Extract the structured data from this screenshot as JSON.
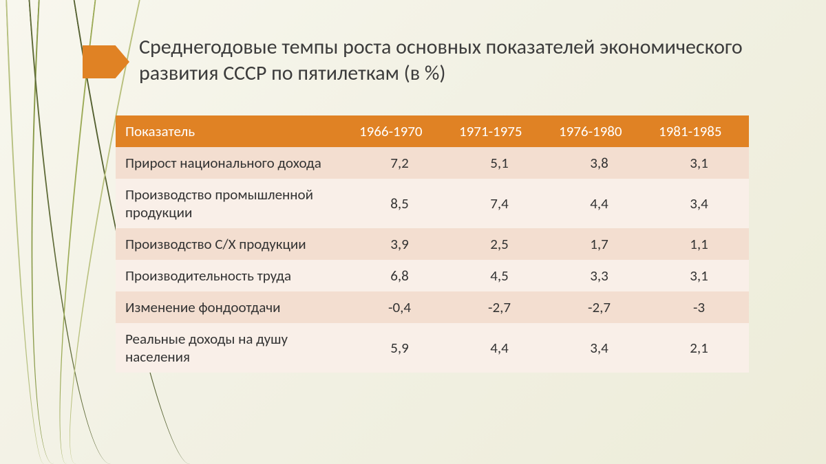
{
  "title": "Среднегодовые темпы роста основных показателей экономического развития СССР по пятилеткам (в %)",
  "title_color": "#3c3c3c",
  "accent_color": "#e08224",
  "table": {
    "type": "table",
    "header_bg": "#e08224",
    "header_text_color": "#ffffff",
    "row_colors": [
      "#f3ded0",
      "#f9efe8"
    ],
    "cell_text_color": "#333333",
    "columns": [
      "Показатель",
      "1966-1970",
      "1971-1975",
      "1976-1980",
      "1981-1985"
    ],
    "rows": [
      {
        "label": "Прирост национального дохода",
        "values": [
          "7,2",
          "5,1",
          "3,8",
          "3,1"
        ]
      },
      {
        "label": "Производство промышленной продукции",
        "values": [
          "8,5",
          "7,4",
          "4,4",
          "3,4"
        ]
      },
      {
        "label": "Производство С/Х продукции",
        "values": [
          "3,9",
          "2,5",
          "1,7",
          "1,1"
        ]
      },
      {
        "label": "Производительность труда",
        "values": [
          "6,8",
          "4,5",
          "3,3",
          "3,1"
        ]
      },
      {
        "label": "Изменение фондоотдачи",
        "values": [
          "-0,4",
          "-2,7",
          "-2,7",
          "-3"
        ]
      },
      {
        "label": "Реальные доходы на душу населения",
        "values": [
          "5,9",
          "4,4",
          "3,4",
          "2,1"
        ]
      }
    ]
  }
}
